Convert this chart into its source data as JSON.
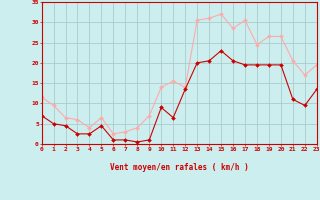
{
  "x": [
    0,
    1,
    2,
    3,
    4,
    5,
    6,
    7,
    8,
    9,
    10,
    11,
    12,
    13,
    14,
    15,
    16,
    17,
    18,
    19,
    20,
    21,
    22,
    23
  ],
  "vent_moyen": [
    7,
    5,
    4.5,
    2.5,
    2.5,
    4.5,
    1,
    1,
    0.5,
    1,
    9,
    6.5,
    13.5,
    20,
    20.5,
    23,
    20.5,
    19.5,
    19.5,
    19.5,
    19.5,
    11,
    9.5,
    13.5
  ],
  "rafales": [
    11.5,
    9.5,
    6.5,
    6,
    4,
    6.5,
    2.5,
    3,
    4,
    7,
    14,
    15.5,
    14,
    30.5,
    31,
    32,
    28.5,
    30.5,
    24.5,
    26.5,
    26.5,
    20.5,
    17,
    19.5
  ],
  "color_moyen": "#cc0000",
  "color_rafales": "#ffaaaa",
  "bg_color": "#cceeee",
  "grid_color": "#aacccc",
  "xlabel": "Vent moyen/en rafales ( km/h )",
  "ylabel_ticks": [
    0,
    5,
    10,
    15,
    20,
    25,
    30,
    35
  ],
  "xlim": [
    0,
    23
  ],
  "ylim": [
    0,
    35
  ],
  "xlabel_color": "#cc0000",
  "tick_color": "#cc0000"
}
